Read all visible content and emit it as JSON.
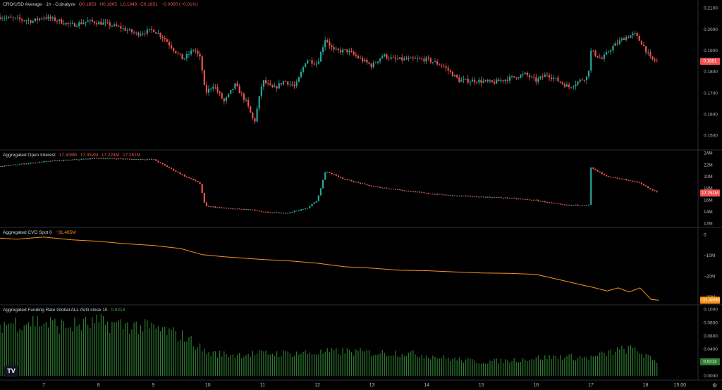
{
  "app": {
    "logo_text": "TV",
    "settings_icon": "gear-icon"
  },
  "colors": {
    "background": "#000000",
    "up": "#26a69a",
    "down": "#ef5350",
    "cvd_line": "#f7931a",
    "funding_bar": "#2e7d32",
    "axis_text": "#b2b5be",
    "pane_divider": "#2a2e39"
  },
  "legends": {
    "price": {
      "name": "CRO/USD Average · 1h · Coinalyze",
      "o": "O0.1853",
      "h": "H0.1865",
      "l": "L0.1848",
      "c": "C0.1851",
      "chg": "−0.0000 (−0.01%)"
    },
    "oi": {
      "name": "Aggregated Open Interest",
      "o": "17.306M",
      "h": "17.352M",
      "l": "17.224M",
      "c": "17.251M"
    },
    "cvd": {
      "name": "Aggregated CVD Spot 0",
      "value": "−31.485M"
    },
    "funding": {
      "name": "Aggregated Funding Rate Global ALL AVG close 10",
      "value": "0.0213"
    }
  },
  "chart_data": [
    {
      "type": "candlestick",
      "title": "CRO/USD Average · 1h · Coinalyze",
      "x_axis": {
        "ticks": [
          "7",
          "8",
          "9",
          "10",
          "11",
          "12",
          "13",
          "14",
          "15",
          "16",
          "17",
          "18",
          "15:00"
        ],
        "range_days": [
          6.2,
          18.6
        ]
      },
      "y_axis": {
        "ticks": [
          "0.2100",
          "0.2000",
          "0.1900",
          "0.1800",
          "0.1700",
          "0.1600",
          "0.1500"
        ],
        "ylim": [
          0.145,
          0.212
        ],
        "scale": "linear"
      },
      "last_value_label": "0.1851",
      "grid": false,
      "close_path": [
        [
          6.2,
          0.206
        ],
        [
          6.5,
          0.205
        ],
        [
          6.8,
          0.204
        ],
        [
          7.0,
          0.206
        ],
        [
          7.3,
          0.204
        ],
        [
          7.5,
          0.202
        ],
        [
          7.8,
          0.204
        ],
        [
          8.1,
          0.203
        ],
        [
          8.4,
          0.201
        ],
        [
          8.7,
          0.198
        ],
        [
          9.0,
          0.2
        ],
        [
          9.2,
          0.196
        ],
        [
          9.4,
          0.19
        ],
        [
          9.55,
          0.186
        ],
        [
          9.75,
          0.191
        ],
        [
          9.87,
          0.186
        ],
        [
          9.95,
          0.17
        ],
        [
          10.1,
          0.174
        ],
        [
          10.3,
          0.166
        ],
        [
          10.5,
          0.174
        ],
        [
          10.7,
          0.166
        ],
        [
          10.85,
          0.156
        ],
        [
          11.0,
          0.176
        ],
        [
          11.2,
          0.172
        ],
        [
          11.4,
          0.176
        ],
        [
          11.6,
          0.173
        ],
        [
          11.8,
          0.186
        ],
        [
          12.0,
          0.184
        ],
        [
          12.15,
          0.196
        ],
        [
          12.3,
          0.19
        ],
        [
          12.55,
          0.19
        ],
        [
          12.8,
          0.186
        ],
        [
          13.0,
          0.183
        ],
        [
          13.2,
          0.188
        ],
        [
          13.4,
          0.186
        ],
        [
          13.7,
          0.186
        ],
        [
          14.0,
          0.186
        ],
        [
          14.3,
          0.183
        ],
        [
          14.6,
          0.176
        ],
        [
          14.9,
          0.176
        ],
        [
          15.2,
          0.175
        ],
        [
          15.5,
          0.177
        ],
        [
          15.8,
          0.179
        ],
        [
          16.0,
          0.176
        ],
        [
          16.2,
          0.179
        ],
        [
          16.4,
          0.176
        ],
        [
          16.6,
          0.173
        ],
        [
          16.8,
          0.176
        ],
        [
          16.95,
          0.178
        ],
        [
          17.0,
          0.19
        ],
        [
          17.2,
          0.186
        ],
        [
          17.4,
          0.192
        ],
        [
          17.6,
          0.196
        ],
        [
          17.8,
          0.198
        ],
        [
          17.95,
          0.193
        ],
        [
          18.1,
          0.186
        ],
        [
          18.25,
          0.185
        ]
      ]
    },
    {
      "type": "candlestick",
      "title": "Aggregated Open Interest",
      "y_axis": {
        "ticks": [
          "24M",
          "22M",
          "20M",
          "18M",
          "16M",
          "14M",
          "12M"
        ],
        "ylim": [
          12,
          24
        ]
      },
      "last_value_label": "17.251M",
      "close_path": [
        [
          6.2,
          21.8
        ],
        [
          7.0,
          22.6
        ],
        [
          8.0,
          23.2
        ],
        [
          8.7,
          23.0
        ],
        [
          9.0,
          23.0
        ],
        [
          9.3,
          21.5
        ],
        [
          9.6,
          20.0
        ],
        [
          9.85,
          19.0
        ],
        [
          9.95,
          15.0
        ],
        [
          10.4,
          14.6
        ],
        [
          10.8,
          14.4
        ],
        [
          11.0,
          14.0
        ],
        [
          11.4,
          13.8
        ],
        [
          11.8,
          14.6
        ],
        [
          12.0,
          16.0
        ],
        [
          12.15,
          21.0
        ],
        [
          12.5,
          19.6
        ],
        [
          13.0,
          18.4
        ],
        [
          13.5,
          17.8
        ],
        [
          14.0,
          17.2
        ],
        [
          14.5,
          16.8
        ],
        [
          15.0,
          16.6
        ],
        [
          15.5,
          16.4
        ],
        [
          16.0,
          16.0
        ],
        [
          16.5,
          15.2
        ],
        [
          16.9,
          15.2
        ],
        [
          16.98,
          15.2
        ],
        [
          17.0,
          21.6
        ],
        [
          17.3,
          20.0
        ],
        [
          17.6,
          19.6
        ],
        [
          17.9,
          19.0
        ],
        [
          18.1,
          17.8
        ],
        [
          18.25,
          17.3
        ]
      ]
    },
    {
      "type": "line",
      "title": "Aggregated CVD Spot 0",
      "y_axis": {
        "ticks": [
          "0",
          "−10M",
          "−20M",
          "−30M"
        ],
        "ylim": [
          -32,
          2
        ]
      },
      "last_value_label": "−31.485M",
      "points": [
        [
          6.2,
          -1.5
        ],
        [
          6.5,
          -2.0
        ],
        [
          7.0,
          -1.0
        ],
        [
          7.5,
          -2.3
        ],
        [
          8.0,
          -3.0
        ],
        [
          8.5,
          -4.2
        ],
        [
          9.0,
          -5.0
        ],
        [
          9.5,
          -6.5
        ],
        [
          9.9,
          -9.5
        ],
        [
          10.3,
          -10.5
        ],
        [
          11.0,
          -11.8
        ],
        [
          11.5,
          -12.5
        ],
        [
          12.0,
          -13.6
        ],
        [
          12.5,
          -15.3
        ],
        [
          13.0,
          -16.0
        ],
        [
          13.5,
          -17.0
        ],
        [
          14.0,
          -17.2
        ],
        [
          14.5,
          -17.8
        ],
        [
          15.0,
          -18.3
        ],
        [
          15.5,
          -18.5
        ],
        [
          16.0,
          -19.0
        ],
        [
          16.5,
          -22.0
        ],
        [
          16.9,
          -24.5
        ],
        [
          17.0,
          -25.0
        ],
        [
          17.3,
          -27.0
        ],
        [
          17.5,
          -25.5
        ],
        [
          17.7,
          -27.5
        ],
        [
          17.9,
          -25.5
        ],
        [
          18.1,
          -31.0
        ],
        [
          18.25,
          -31.5
        ]
      ]
    },
    {
      "type": "bar",
      "title": "Aggregated Funding Rate Global ALL AVG close 10",
      "y_axis": {
        "ticks": [
          "0.1000",
          "0.0800",
          "0.0600",
          "0.0400",
          "0.0200",
          "0.0000"
        ],
        "ylim": [
          -0.002,
          0.102
        ]
      },
      "last_value_label": "0.0213",
      "profile": [
        [
          6.2,
          0.08
        ],
        [
          6.8,
          0.085
        ],
        [
          7.4,
          0.077
        ],
        [
          8.0,
          0.082
        ],
        [
          8.6,
          0.078
        ],
        [
          9.1,
          0.072
        ],
        [
          9.6,
          0.06
        ],
        [
          10.0,
          0.035
        ],
        [
          10.5,
          0.033
        ],
        [
          11.0,
          0.035
        ],
        [
          11.5,
          0.035
        ],
        [
          12.0,
          0.036
        ],
        [
          12.5,
          0.038
        ],
        [
          13.0,
          0.036
        ],
        [
          13.5,
          0.036
        ],
        [
          14.0,
          0.032
        ],
        [
          14.5,
          0.026
        ],
        [
          15.0,
          0.022
        ],
        [
          15.5,
          0.024
        ],
        [
          16.0,
          0.028
        ],
        [
          16.5,
          0.03
        ],
        [
          17.0,
          0.028
        ],
        [
          17.5,
          0.04
        ],
        [
          17.8,
          0.042
        ],
        [
          18.1,
          0.026
        ],
        [
          18.25,
          0.021
        ]
      ]
    }
  ]
}
